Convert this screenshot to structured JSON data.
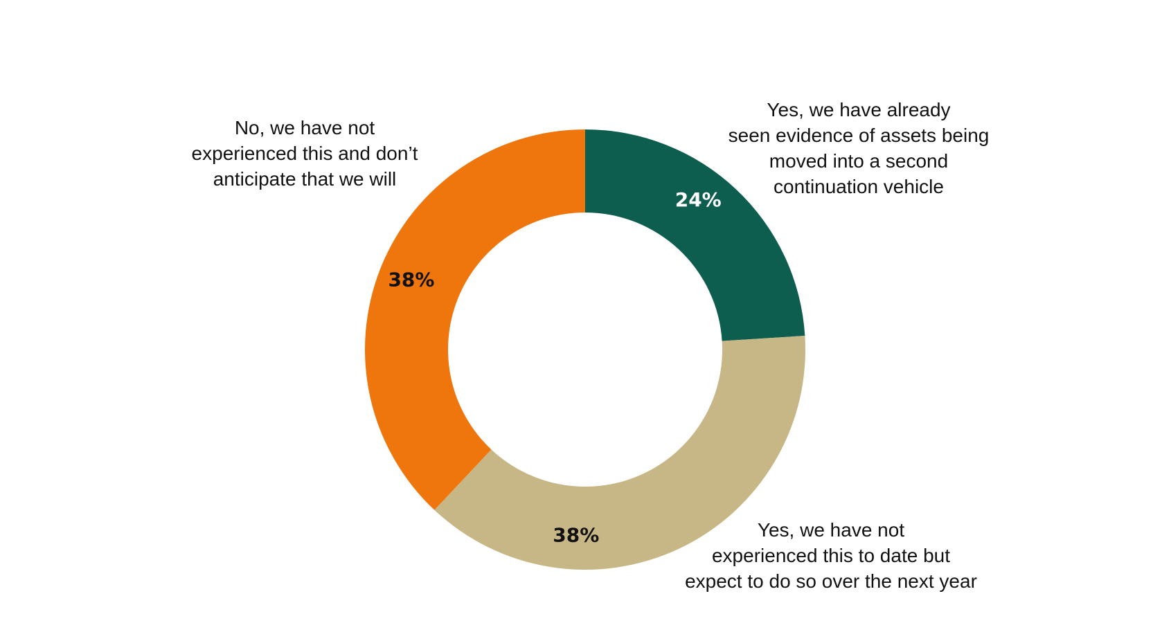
{
  "chart_data": {
    "type": "pie",
    "variant": "donut",
    "title": "",
    "slices": [
      {
        "label_lines": [
          "Yes, we have already",
          "seen evidence of assets being",
          "moved into a second",
          "continuation vehicle"
        ],
        "value": 24,
        "value_label": "24%",
        "color": "#0E5E50",
        "value_label_color": "#FFFFFF"
      },
      {
        "label_lines": [
          "Yes, we have not",
          "experienced this to date but",
          "expect to do so over the next year"
        ],
        "value": 38,
        "value_label": "38%",
        "color": "#C8B786",
        "value_label_color": "#111111"
      },
      {
        "label_lines": [
          "No, we have not",
          "experienced this and don’t",
          "anticipate that we will"
        ],
        "value": 38,
        "value_label": "38%",
        "color": "#EE760C",
        "value_label_color": "#111111"
      }
    ]
  }
}
